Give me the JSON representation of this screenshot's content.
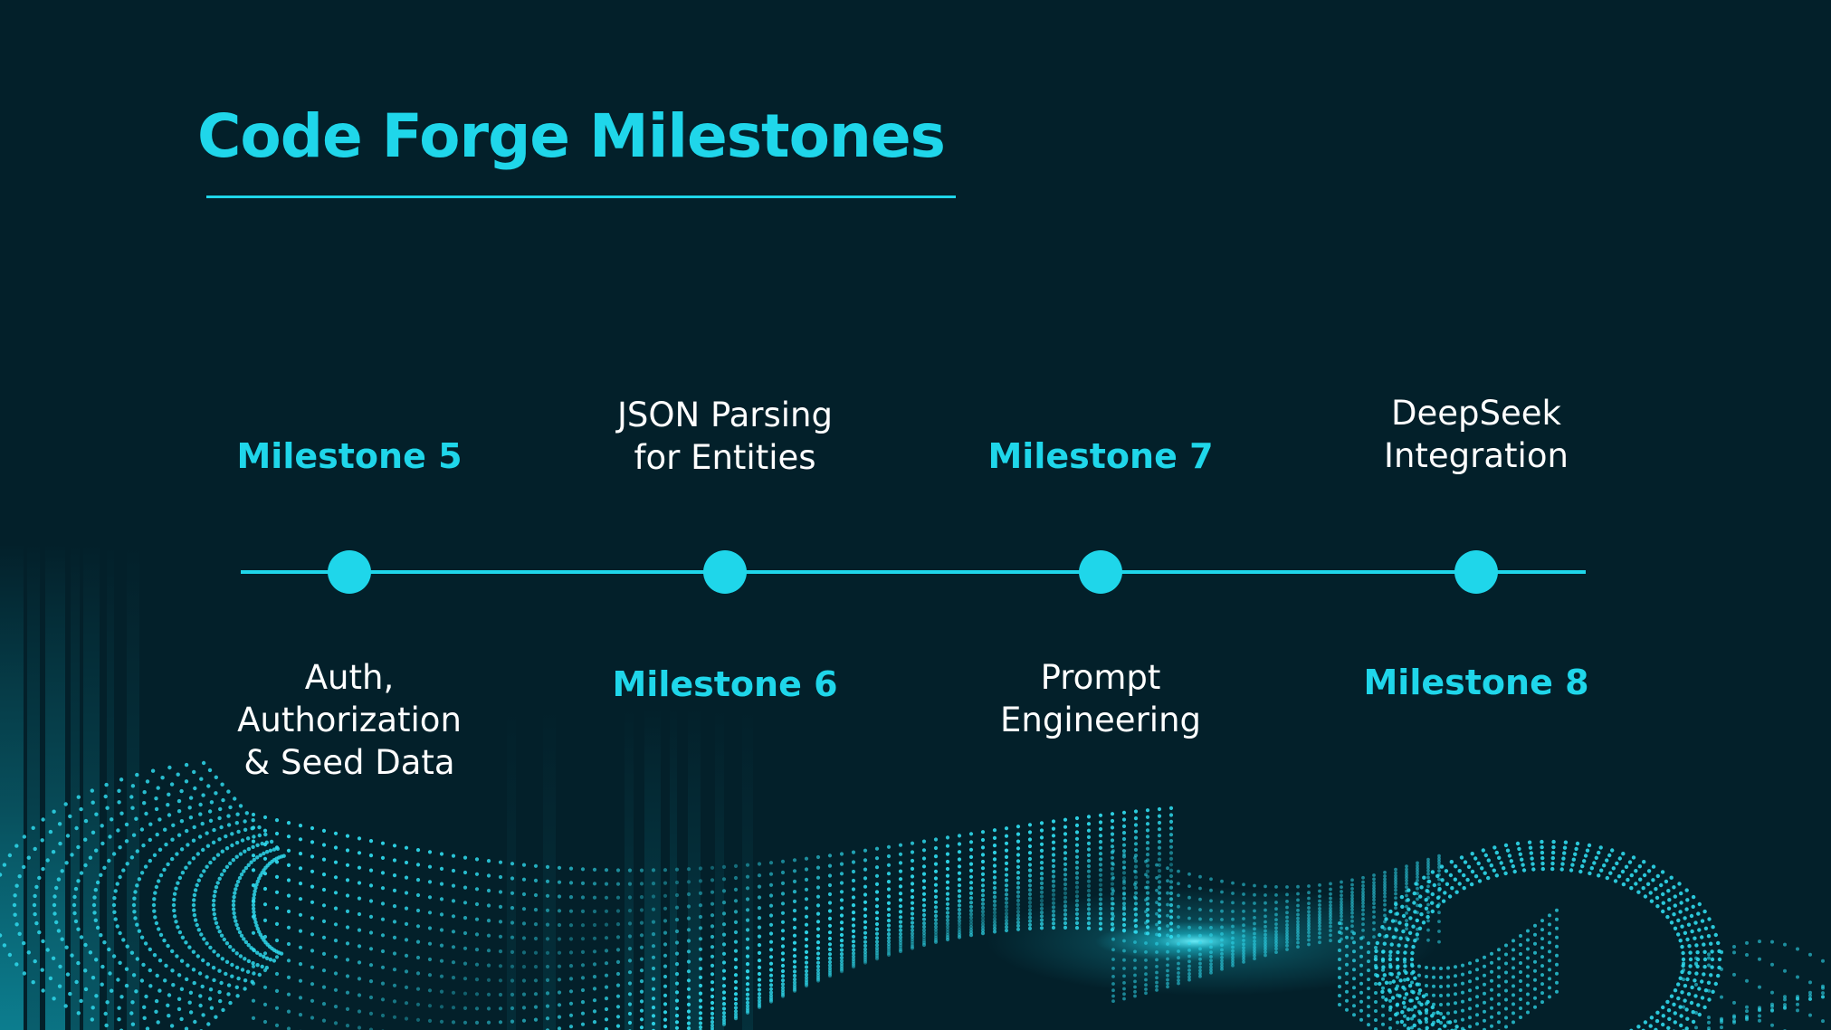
{
  "slide": {
    "title": "Code Forge Milestones",
    "accent_color": "#1fd6ea",
    "background_color": "#03202a",
    "text_color": "#ffffff"
  },
  "milestones": [
    {
      "heading": "Milestone 5",
      "description": "Auth,\nAuthorization\n& Seed Data"
    },
    {
      "heading": "Milestone 6",
      "description": "JSON Parsing\nfor Entities"
    },
    {
      "heading": "Milestone 7",
      "description": "Prompt\nEngineering"
    },
    {
      "heading": "Milestone 8",
      "description": "DeepSeek\nIntegration"
    }
  ]
}
